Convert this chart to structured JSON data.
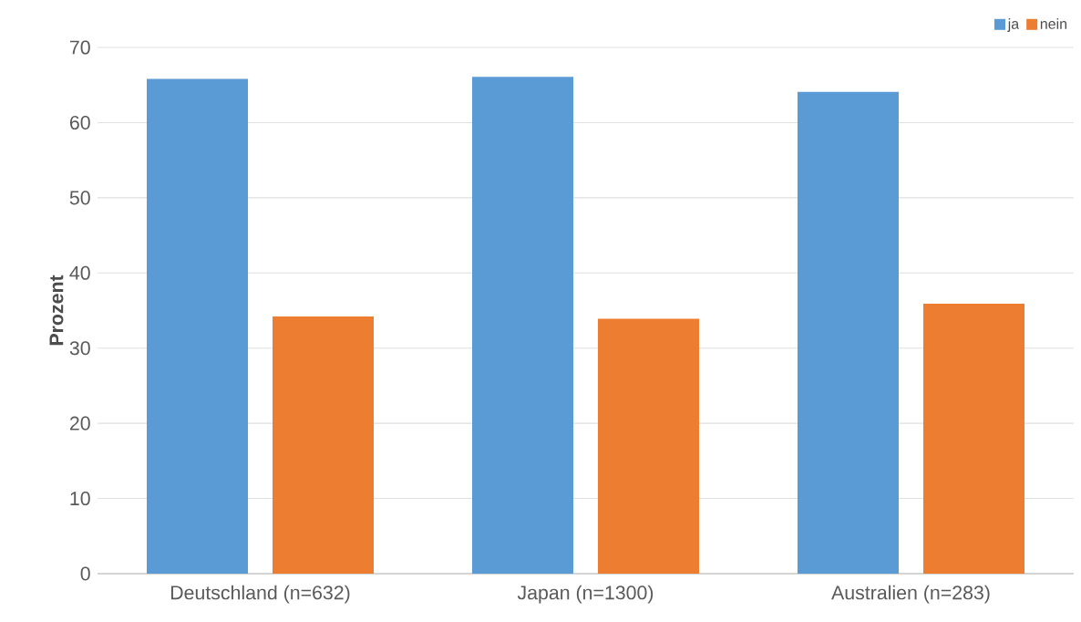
{
  "chart_data": {
    "type": "bar",
    "ylabel": "Prozent",
    "categories": [
      "Deutschland (n=632)",
      "Japan (n=1300)",
      "Australien (n=283)"
    ],
    "series": [
      {
        "name": "ja",
        "color": "#5b9bd5",
        "values": [
          65.8,
          66.1,
          64.1
        ]
      },
      {
        "name": "nein",
        "color": "#ed7d31",
        "values": [
          34.2,
          33.9,
          35.9
        ]
      }
    ],
    "ylim": [
      0,
      70
    ],
    "yticks": [
      0,
      10,
      20,
      30,
      40,
      50,
      60,
      70
    ],
    "grid": "y",
    "legend": "top right"
  }
}
